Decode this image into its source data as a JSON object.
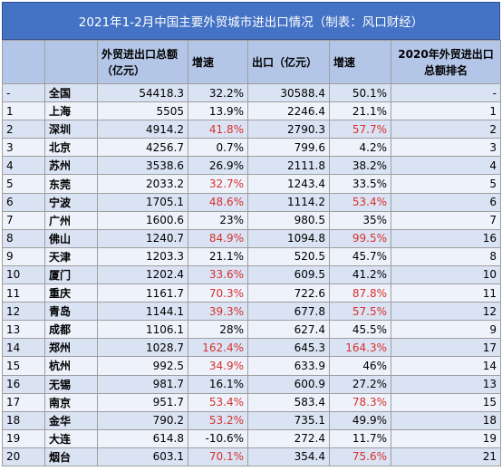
{
  "title": "2021年1-2月中国主要外贸城市进出口情况（制表：风口财经）",
  "headers": {
    "rank": "",
    "city": "",
    "total": "外贸进出口总额（亿元）",
    "total_growth": "增速",
    "export": "出口（亿元）",
    "export_growth": "增速",
    "rank2020": "2020年外贸进出口总额排名"
  },
  "rows": [
    {
      "rank": "-",
      "city": "全国",
      "total": "54418.3",
      "total_growth": "32.2%",
      "export": "30588.4",
      "export_growth": "50.1%",
      "rank2020": "-",
      "tg_red": false,
      "eg_red": false
    },
    {
      "rank": "1",
      "city": "上海",
      "total": "5505",
      "total_growth": "13.9%",
      "export": "2246.4",
      "export_growth": "21.1%",
      "rank2020": "1",
      "tg_red": false,
      "eg_red": false
    },
    {
      "rank": "2",
      "city": "深圳",
      "total": "4914.2",
      "total_growth": "41.8%",
      "export": "2790.3",
      "export_growth": "57.7%",
      "rank2020": "2",
      "tg_red": true,
      "eg_red": true
    },
    {
      "rank": "3",
      "city": "北京",
      "total": "4256.7",
      "total_growth": "0.7%",
      "export": "799.6",
      "export_growth": "4.2%",
      "rank2020": "3",
      "tg_red": false,
      "eg_red": false
    },
    {
      "rank": "4",
      "city": "苏州",
      "total": "3538.6",
      "total_growth": "26.9%",
      "export": "2111.8",
      "export_growth": "38.2%",
      "rank2020": "4",
      "tg_red": false,
      "eg_red": false
    },
    {
      "rank": "5",
      "city": "东莞",
      "total": "2033.2",
      "total_growth": "32.7%",
      "export": "1243.4",
      "export_growth": "33.5%",
      "rank2020": "5",
      "tg_red": true,
      "eg_red": false
    },
    {
      "rank": "6",
      "city": "宁波",
      "total": "1705.1",
      "total_growth": "48.6%",
      "export": "1114.2",
      "export_growth": "53.4%",
      "rank2020": "6",
      "tg_red": true,
      "eg_red": true
    },
    {
      "rank": "7",
      "city": "广州",
      "total": "1600.6",
      "total_growth": "23%",
      "export": "980.5",
      "export_growth": "35%",
      "rank2020": "7",
      "tg_red": false,
      "eg_red": false
    },
    {
      "rank": "8",
      "city": "佛山",
      "total": "1240.7",
      "total_growth": "84.9%",
      "export": "1094.8",
      "export_growth": "99.5%",
      "rank2020": "16",
      "tg_red": true,
      "eg_red": true
    },
    {
      "rank": "9",
      "city": "天津",
      "total": "1203.3",
      "total_growth": "21.1%",
      "export": "520.5",
      "export_growth": "45.7%",
      "rank2020": "8",
      "tg_red": false,
      "eg_red": false
    },
    {
      "rank": "10",
      "city": "厦门",
      "total": "1202.4",
      "total_growth": "33.6%",
      "export": "609.5",
      "export_growth": "41.2%",
      "rank2020": "10",
      "tg_red": true,
      "eg_red": false
    },
    {
      "rank": "11",
      "city": "重庆",
      "total": "1161.7",
      "total_growth": "70.3%",
      "export": "722.6",
      "export_growth": "87.8%",
      "rank2020": "11",
      "tg_red": true,
      "eg_red": true
    },
    {
      "rank": "12",
      "city": "青岛",
      "total": "1144.1",
      "total_growth": "39.3%",
      "export": "677.8",
      "export_growth": "57.5%",
      "rank2020": "12",
      "tg_red": true,
      "eg_red": true
    },
    {
      "rank": "13",
      "city": "成都",
      "total": "1106.1",
      "total_growth": "28%",
      "export": "627.4",
      "export_growth": "45.5%",
      "rank2020": "9",
      "tg_red": false,
      "eg_red": false
    },
    {
      "rank": "14",
      "city": "郑州",
      "total": "1028.7",
      "total_growth": "162.4%",
      "export": "645.3",
      "export_growth": "164.3%",
      "rank2020": "17",
      "tg_red": true,
      "eg_red": true
    },
    {
      "rank": "15",
      "city": "杭州",
      "total": "992.5",
      "total_growth": "34.9%",
      "export": "633.9",
      "export_growth": "46%",
      "rank2020": "14",
      "tg_red": true,
      "eg_red": false
    },
    {
      "rank": "16",
      "city": "无锡",
      "total": "981.7",
      "total_growth": "16.1%",
      "export": "600.9",
      "export_growth": "27.2%",
      "rank2020": "13",
      "tg_red": false,
      "eg_red": false
    },
    {
      "rank": "17",
      "city": "南京",
      "total": "951.7",
      "total_growth": "53.4%",
      "export": "583.4",
      "export_growth": "78.3%",
      "rank2020": "15",
      "tg_red": true,
      "eg_red": true
    },
    {
      "rank": "18",
      "city": "金华",
      "total": "790.2",
      "total_growth": "53.2%",
      "export": "735.1",
      "export_growth": "49.9%",
      "rank2020": "18",
      "tg_red": true,
      "eg_red": false
    },
    {
      "rank": "19",
      "city": "大连",
      "total": "614.8",
      "total_growth": "-10.6%",
      "export": "272.4",
      "export_growth": "11.7%",
      "rank2020": "19",
      "tg_red": false,
      "eg_red": false
    },
    {
      "rank": "20",
      "city": "烟台",
      "total": "603.1",
      "total_growth": "70.1%",
      "export": "354.4",
      "export_growth": "75.6%",
      "rank2020": "21",
      "tg_red": true,
      "eg_red": true
    }
  ],
  "colors": {
    "title_bg": "#4472c4",
    "header_bg": "#b4c6e7",
    "row_odd": "#dae3f3",
    "row_even": "#eef2fa",
    "highlight_red": "#d8312e"
  }
}
